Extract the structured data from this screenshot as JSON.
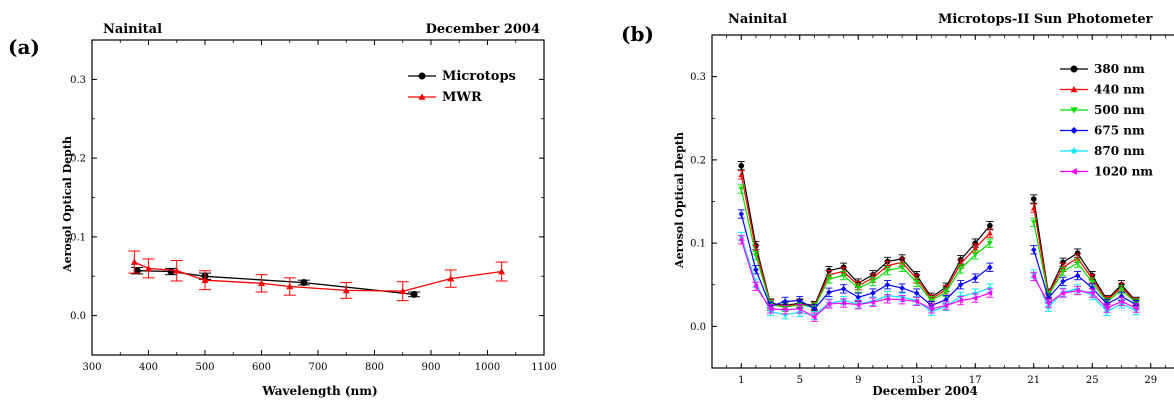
{
  "chart_data": [
    {
      "panel": "(a)",
      "type": "line",
      "location": "Nainital",
      "title": "December 2004",
      "xlabel": "Wavelength (nm)",
      "ylabel": "Aerosol Optical Depth",
      "xlim": [
        300,
        1100
      ],
      "ylim": [
        -0.05,
        0.35
      ],
      "xticks": [
        300,
        400,
        500,
        600,
        700,
        800,
        900,
        1000,
        1100
      ],
      "yticks": [
        0.0,
        0.1,
        0.2,
        0.3
      ],
      "ytick_labels": [
        "0.0",
        "0.1",
        "0.2",
        "0.3"
      ],
      "legend_position": "top-right",
      "grid": false,
      "series": [
        {
          "name": "Microtops",
          "color": "#000000",
          "marker": "circle",
          "x": [
            380,
            440,
            500,
            675,
            870
          ],
          "y": [
            0.057,
            0.056,
            0.05,
            0.042,
            0.027
          ],
          "err": [
            0.004,
            0.004,
            0.004,
            0.003,
            0.003
          ]
        },
        {
          "name": "MWR",
          "color": "#ff0000",
          "marker": "triangle",
          "x": [
            375,
            400,
            450,
            500,
            600,
            650,
            750,
            850,
            935,
            1025
          ],
          "y": [
            0.068,
            0.06,
            0.057,
            0.045,
            0.041,
            0.037,
            0.032,
            0.031,
            0.047,
            0.056
          ],
          "err": [
            0.014,
            0.012,
            0.013,
            0.012,
            0.011,
            0.011,
            0.01,
            0.012,
            0.011,
            0.012
          ]
        }
      ]
    },
    {
      "panel": "(b)",
      "type": "line",
      "location": "Nainital",
      "title": "Microtops-II Sun Photometer",
      "xlabel": "December 2004",
      "ylabel": "Aerosol Optical Depth",
      "xlim": [
        -1,
        31
      ],
      "ylim": [
        -0.05,
        0.35
      ],
      "xticks": [
        1,
        5,
        9,
        13,
        17,
        21,
        25,
        29
      ],
      "yticks": [
        0.0,
        0.1,
        0.2,
        0.3
      ],
      "ytick_labels": [
        "0.0",
        "0.1",
        "0.2",
        "0.3"
      ],
      "legend_position": "top-right",
      "grid": false,
      "x": [
        1,
        2,
        3,
        4,
        5,
        6,
        7,
        8,
        9,
        10,
        11,
        12,
        13,
        14,
        15,
        16,
        17,
        18,
        null,
        21,
        22,
        23,
        24,
        25,
        26,
        27,
        28
      ],
      "series": [
        {
          "name": "380 nm",
          "color": "#000000",
          "marker": "circle",
          "y": [
            0.193,
            0.097,
            0.028,
            0.025,
            0.028,
            0.025,
            0.067,
            0.071,
            0.052,
            0.062,
            0.078,
            0.081,
            0.061,
            0.035,
            0.047,
            0.08,
            0.1,
            0.121,
            null,
            0.153,
            0.04,
            0.077,
            0.088,
            0.061,
            0.032,
            0.05,
            0.03
          ]
        },
        {
          "name": "440 nm",
          "color": "#ff0000",
          "marker": "triangle",
          "y": [
            0.182,
            0.092,
            0.027,
            0.024,
            0.027,
            0.024,
            0.062,
            0.066,
            0.049,
            0.058,
            0.073,
            0.077,
            0.057,
            0.033,
            0.044,
            0.075,
            0.094,
            0.112,
            null,
            0.142,
            0.039,
            0.071,
            0.082,
            0.057,
            0.031,
            0.047,
            0.029
          ]
        },
        {
          "name": "500 nm",
          "color": "#00dd00",
          "marker": "triangle-down",
          "y": [
            0.165,
            0.085,
            0.026,
            0.023,
            0.026,
            0.023,
            0.057,
            0.061,
            0.046,
            0.054,
            0.067,
            0.071,
            0.053,
            0.031,
            0.041,
            0.069,
            0.086,
            0.1,
            null,
            0.125,
            0.037,
            0.066,
            0.076,
            0.053,
            0.029,
            0.044,
            0.028
          ]
        },
        {
          "name": "675 nm",
          "color": "#0000ff",
          "marker": "diamond",
          "y": [
            0.135,
            0.068,
            0.024,
            0.03,
            0.031,
            0.021,
            0.041,
            0.045,
            0.035,
            0.04,
            0.05,
            0.046,
            0.04,
            0.025,
            0.032,
            0.05,
            0.058,
            0.071,
            null,
            0.092,
            0.034,
            0.054,
            0.061,
            0.046,
            0.027,
            0.036,
            0.026
          ]
        },
        {
          "name": "870 nm",
          "color": "#00e5ff",
          "marker": "star",
          "y": [
            0.108,
            0.052,
            0.018,
            0.014,
            0.017,
            0.013,
            0.028,
            0.031,
            0.027,
            0.03,
            0.037,
            0.035,
            0.031,
            0.018,
            0.024,
            0.036,
            0.04,
            0.046,
            null,
            0.063,
            0.023,
            0.041,
            0.045,
            0.037,
            0.018,
            0.027,
            0.019
          ]
        },
        {
          "name": "1020 nm",
          "color": "#ff00ff",
          "marker": "triangle-left",
          "y": [
            0.104,
            0.048,
            0.021,
            0.02,
            0.021,
            0.011,
            0.027,
            0.028,
            0.026,
            0.029,
            0.033,
            0.032,
            0.03,
            0.021,
            0.025,
            0.031,
            0.034,
            0.04,
            null,
            0.06,
            0.028,
            0.04,
            0.043,
            0.04,
            0.022,
            0.03,
            0.022
          ]
        }
      ],
      "err": 0.005
    }
  ]
}
